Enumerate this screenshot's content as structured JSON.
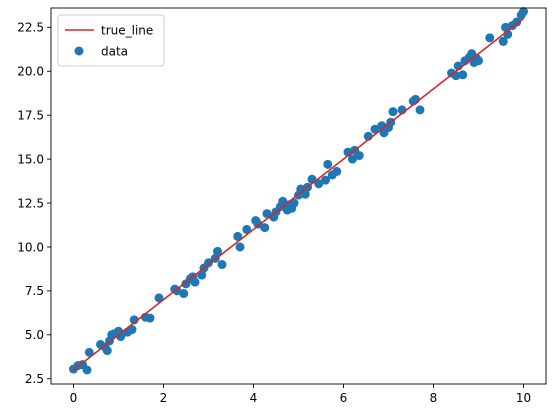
{
  "chart_data": {
    "type": "scatter",
    "title": "",
    "xlabel": "",
    "ylabel": "",
    "xlim": [
      -0.5,
      10.5
    ],
    "ylim": [
      2.2,
      23.6
    ],
    "grid": false,
    "legend_position": "top-left",
    "x_ticks": [
      0,
      2,
      4,
      6,
      8,
      10
    ],
    "x_tick_labels": [
      "0",
      "2",
      "4",
      "6",
      "8",
      "10"
    ],
    "y_ticks": [
      2.5,
      5.0,
      7.5,
      10.0,
      12.5,
      15.0,
      17.5,
      20.0,
      22.5
    ],
    "y_tick_labels": [
      "2.5",
      "5.0",
      "7.5",
      "10.0",
      "12.5",
      "15.0",
      "17.5",
      "20.0",
      "22.5"
    ],
    "series": [
      {
        "name": "true_line",
        "kind": "line",
        "color": "#d62728",
        "x": [
          0,
          10
        ],
        "y": [
          3.0,
          23.0
        ]
      },
      {
        "name": "data",
        "kind": "scatter",
        "color": "#1f77b4",
        "x": [
          0.0,
          0.1,
          0.2,
          0.3,
          0.35,
          0.6,
          0.7,
          0.75,
          0.8,
          0.85,
          0.9,
          1.0,
          1.05,
          1.2,
          1.3,
          1.35,
          1.6,
          1.7,
          1.9,
          2.25,
          2.3,
          2.45,
          2.5,
          2.6,
          2.65,
          2.7,
          2.85,
          2.9,
          3.0,
          3.15,
          3.2,
          3.3,
          3.65,
          3.7,
          3.85,
          4.05,
          4.1,
          4.25,
          4.3,
          4.45,
          4.5,
          4.6,
          4.65,
          4.75,
          4.8,
          4.85,
          4.9,
          5.0,
          5.05,
          5.15,
          5.2,
          5.3,
          5.45,
          5.6,
          5.65,
          5.75,
          5.85,
          6.1,
          6.2,
          6.25,
          6.35,
          6.55,
          6.7,
          6.85,
          6.9,
          7.0,
          7.05,
          7.1,
          7.3,
          7.55,
          7.6,
          7.7,
          8.4,
          8.5,
          8.55,
          8.65,
          8.7,
          8.8,
          8.85,
          8.9,
          8.95,
          9.0,
          9.25,
          9.55,
          9.6,
          9.65,
          9.75,
          9.85,
          9.95,
          10.0
        ],
        "y": [
          3.05,
          3.25,
          3.3,
          3.0,
          4.0,
          4.45,
          4.3,
          4.1,
          4.65,
          5.0,
          5.05,
          5.2,
          4.9,
          5.15,
          5.3,
          5.85,
          6.0,
          5.95,
          7.1,
          7.6,
          7.5,
          7.35,
          7.9,
          8.2,
          8.3,
          8.0,
          8.4,
          8.8,
          9.1,
          9.35,
          9.75,
          9.0,
          10.6,
          10.0,
          11.0,
          11.5,
          11.3,
          11.1,
          11.9,
          11.7,
          12.0,
          12.3,
          12.6,
          12.1,
          12.4,
          12.2,
          12.5,
          12.95,
          13.3,
          13.0,
          13.4,
          13.85,
          13.6,
          13.8,
          14.7,
          14.1,
          14.3,
          15.4,
          15.0,
          15.5,
          15.2,
          16.3,
          16.7,
          16.9,
          16.5,
          16.8,
          17.1,
          17.7,
          17.8,
          18.3,
          18.4,
          17.8,
          19.9,
          19.75,
          20.3,
          19.8,
          20.6,
          20.8,
          21.0,
          20.5,
          20.75,
          20.6,
          21.9,
          21.7,
          22.5,
          22.1,
          22.6,
          22.8,
          23.2,
          23.4
        ]
      }
    ]
  }
}
